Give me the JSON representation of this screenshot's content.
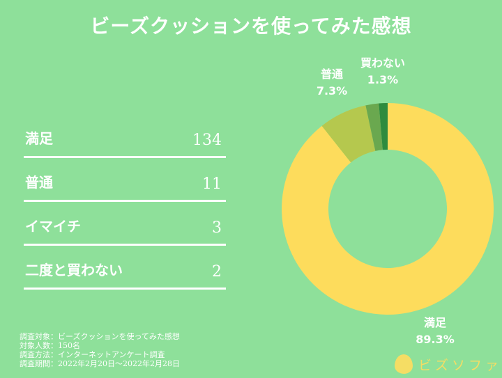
{
  "title": "ビーズクッションを使ってみた感想",
  "table": [
    {
      "label": "満足",
      "count": "134"
    },
    {
      "label": "普通",
      "count": "11"
    },
    {
      "label": "イマイチ",
      "count": "3"
    },
    {
      "label": "二度と買わない",
      "count": "2"
    }
  ],
  "notes": [
    "調査対象：ビーズクッションを使ってみた感想",
    "対象人数：150名",
    "調査方法：インターネットアンケート調査",
    "調査期間：2022年2月20日～2022年2月28日"
  ],
  "logo": {
    "text": "ビズソファ"
  },
  "chart_data": {
    "type": "pie",
    "donut": true,
    "title": "ビーズクッションを使ってみた感想",
    "categories": [
      "満足",
      "普通",
      "イマイチ",
      "二度と買わない"
    ],
    "values": [
      134,
      11,
      3,
      2
    ],
    "colors": [
      "#fddc5c",
      "#b5c84e",
      "#6aa84f",
      "#2e8b3e"
    ],
    "labels": [
      {
        "name": "満足",
        "percent": "89.3%"
      },
      {
        "name": "普通",
        "percent": "7.3%"
      },
      {
        "name": "買わない",
        "percent": "1.3%"
      }
    ]
  }
}
